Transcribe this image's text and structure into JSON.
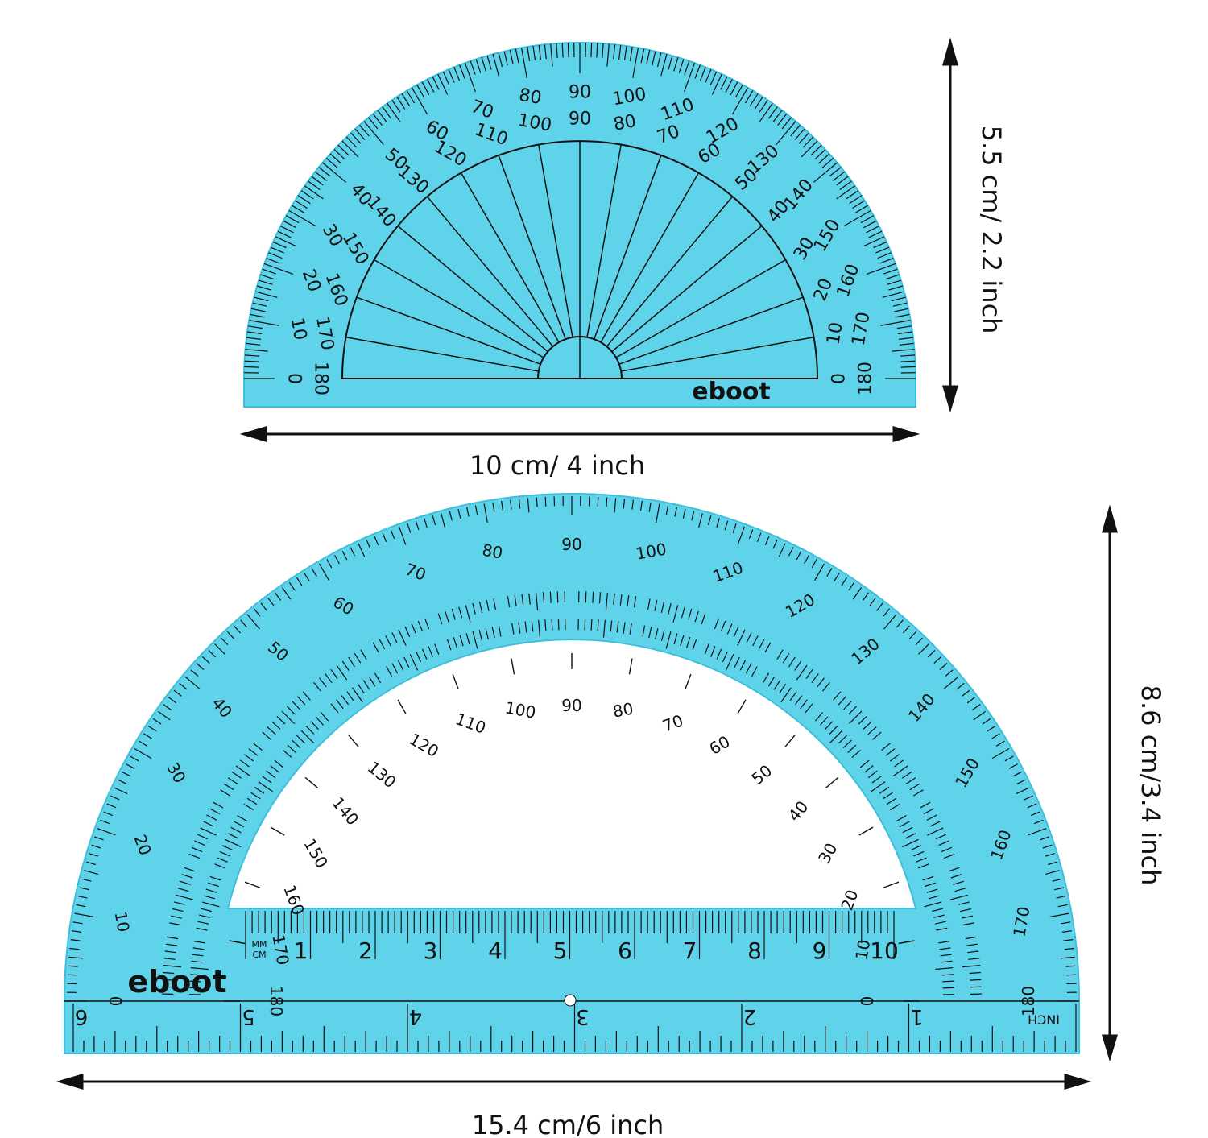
{
  "brand": "eboot",
  "colors": {
    "plastic": "#5fd3ea",
    "plastic_edge": "#3fbfd9",
    "ink": "#111111"
  },
  "small_protractor": {
    "width_label": "10 cm/ 4 inch",
    "height_label": "5.5 cm/ 2.2 inch",
    "scale_range": [
      0,
      180
    ],
    "major_step": 10
  },
  "large_protractor": {
    "width_label": "15.4 cm/6 inch",
    "height_label": "8.6 cm/3.4 inch",
    "scale_range": [
      0,
      180
    ],
    "major_step": 10,
    "cm_scale_label": "MM\nCM",
    "mm_label": "MM",
    "cm_label": "CM",
    "cm_numbers": [
      "1",
      "2",
      "3",
      "4",
      "5",
      "6",
      "7",
      "8",
      "9",
      "10"
    ],
    "inch_label": "INCH",
    "inch_numbers": [
      "1",
      "2",
      "3",
      "4",
      "5",
      "6"
    ]
  }
}
